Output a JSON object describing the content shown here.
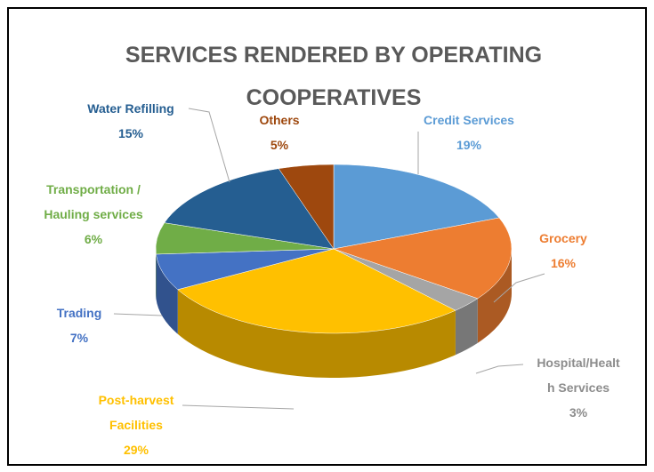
{
  "chart_data": {
    "type": "pie",
    "title": "SERVICES RENDERED BY OPERATING COOPERATIVES",
    "categories": [
      "Credit Services",
      "Grocery",
      "Hospital/Health Services",
      "Post-harvest Facilities",
      "Trading",
      "Transportation / Hauling services",
      "Water Refilling",
      "Others"
    ],
    "values": [
      19,
      16,
      3,
      29,
      7,
      6,
      15,
      5
    ],
    "value_labels": [
      "19%",
      "16%",
      "3%",
      "29%",
      "7%",
      "6%",
      "15%",
      "5%"
    ],
    "colors": [
      "#5b9bd5",
      "#ed7d31",
      "#a5a5a5",
      "#ffc000",
      "#4472c4",
      "#70ad47",
      "#255e91",
      "#9e480e"
    ]
  }
}
